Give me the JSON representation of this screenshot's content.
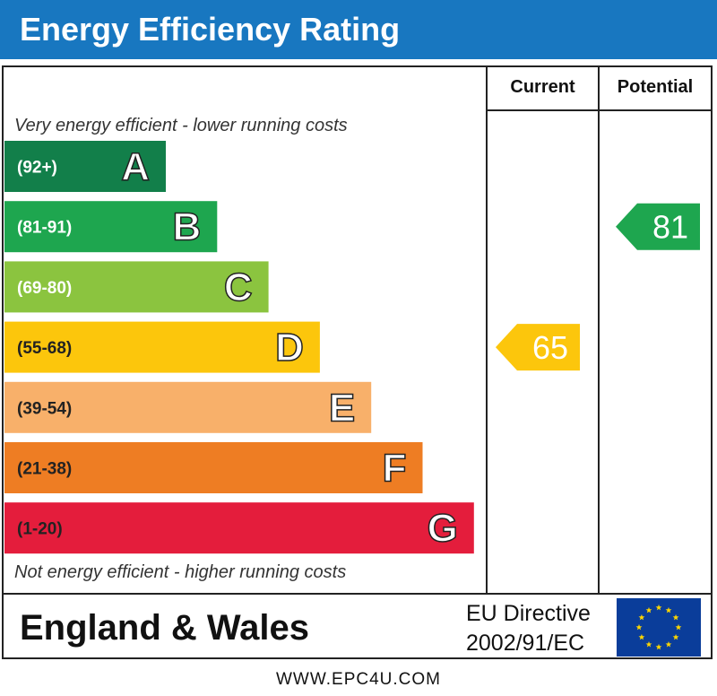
{
  "header": {
    "title": "Energy Efficiency Rating",
    "color": "#1877c0"
  },
  "columns": {
    "current": "Current",
    "potential": "Potential"
  },
  "notes": {
    "top": "Very energy efficient - lower running costs",
    "bottom": "Not energy efficient - higher running costs"
  },
  "chart_data": {
    "type": "bar",
    "title": "Energy Efficiency Rating",
    "categories": [
      "A",
      "B",
      "C",
      "D",
      "E",
      "F",
      "G"
    ],
    "ranges": [
      "(92+)",
      "(81-91)",
      "(69-80)",
      "(55-68)",
      "(39-54)",
      "(21-38)",
      "(1-20)"
    ],
    "colors": [
      "#127f4a",
      "#1ea64f",
      "#8bc43f",
      "#fcc60c",
      "#f8b06a",
      "#ee7d23",
      "#e41d3c"
    ],
    "current": {
      "label": "Current",
      "value": 65,
      "band": "D",
      "color": "#fcc60c"
    },
    "potential": {
      "label": "Potential",
      "value": 81,
      "band": "B",
      "color": "#1ea64f"
    }
  },
  "footer": {
    "region": "England & Wales",
    "directive_line1": "EU Directive",
    "directive_line2": "2002/91/EC",
    "flag_color": "#0a3d9a",
    "star_color": "#ffd700"
  },
  "url": "WWW.EPC4U.COM"
}
